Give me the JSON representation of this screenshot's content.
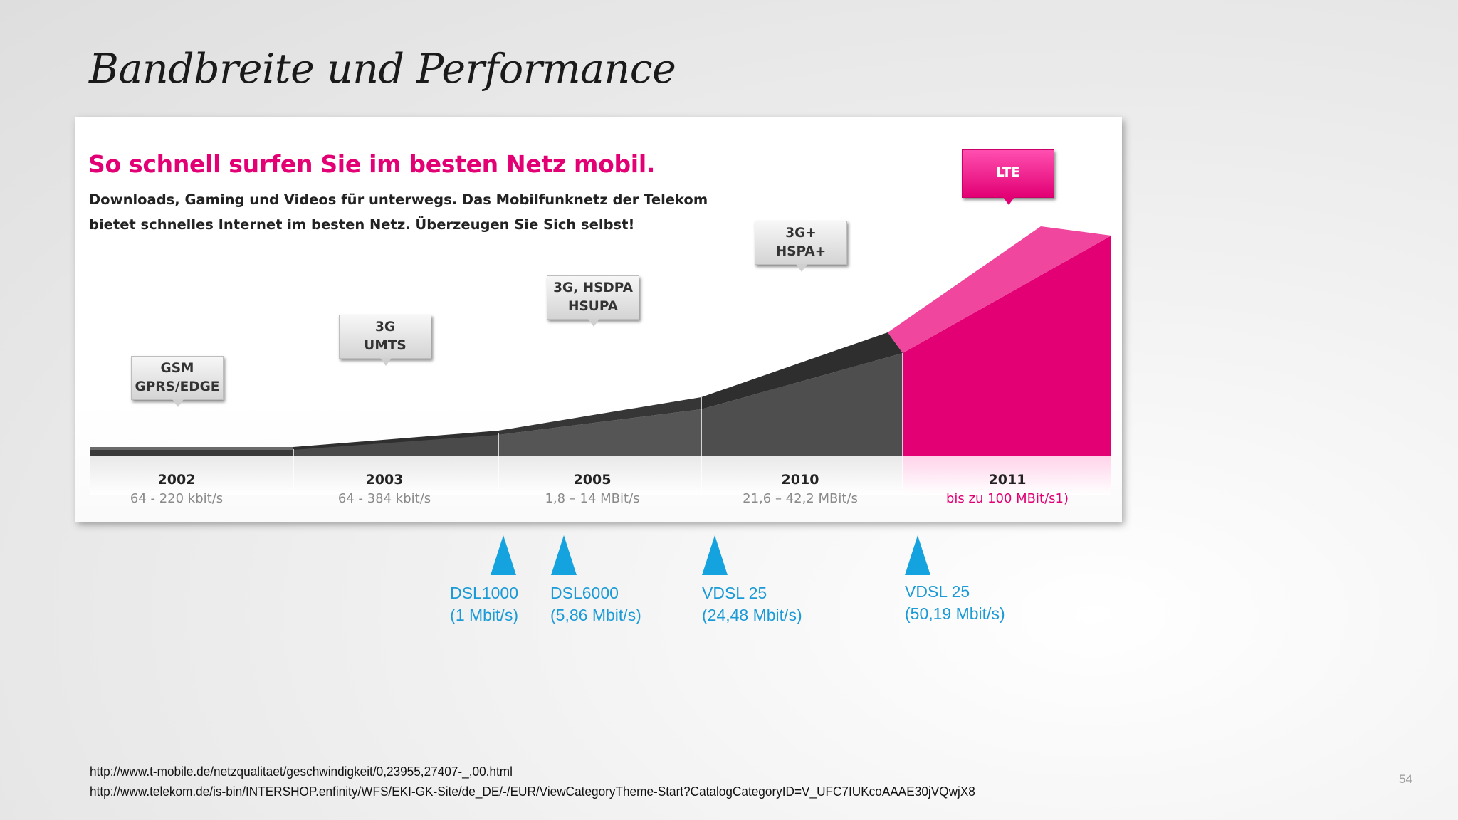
{
  "slide": {
    "title": "Bandbreite und Performance",
    "page_number": "54"
  },
  "panel": {
    "headline": "So schnell surfen Sie im besten Netz mobil.",
    "subtext_line1": "Downloads, Gaming und Videos für unterwegs. Das Mobilfunknetz der Telekom",
    "subtext_line2": "bietet schnelles Internet im besten Netz. Überzeugen Sie Sich selbst!",
    "colors": {
      "accent": "#e20074",
      "grey_dark": "#3a3a3a",
      "grey_mid": "#5a5a5a"
    },
    "technologies": [
      {
        "line1": "GSM",
        "line2": "GPRS/EDGE",
        "year": "2002",
        "speed": "64 - 220 kbit/s"
      },
      {
        "line1": "3G",
        "line2": "UMTS",
        "year": "2003",
        "speed": "64 - 384 kbit/s"
      },
      {
        "line1": "3G, HSDPA",
        "line2": "HSUPA",
        "year": "2005",
        "speed": "1,8 – 14 MBit/s"
      },
      {
        "line1": "3G+",
        "line2": "HSPA+",
        "year": "2010",
        "speed": "21,6 – 42,2 MBit/s"
      },
      {
        "line1": "LTE",
        "line2": "",
        "year": "2011",
        "speed": "bis zu 100 MBit/s1)"
      }
    ]
  },
  "dsl": [
    {
      "name": "DSL1000",
      "rate": "(1 Mbit/s)"
    },
    {
      "name": "DSL6000",
      "rate": "(5,86 Mbit/s)"
    },
    {
      "name": "VDSL 25",
      "rate": "(24,48 Mbit/s)"
    },
    {
      "name": "VDSL 25",
      "rate": "(50,19 Mbit/s)"
    }
  ],
  "sources": [
    "http://www.t-mobile.de/netzqualitaet/geschwindigkeit/0,23955,27407-_,00.html",
    "http://www.telekom.de/is-bin/INTERSHOP.enfinity/WFS/EKI-GK-Site/de_DE/-/EUR/ViewCategoryTheme-Start?CatalogCategoryID=V_UFC7IUKcoAAAE30jVQwjX8"
  ]
}
